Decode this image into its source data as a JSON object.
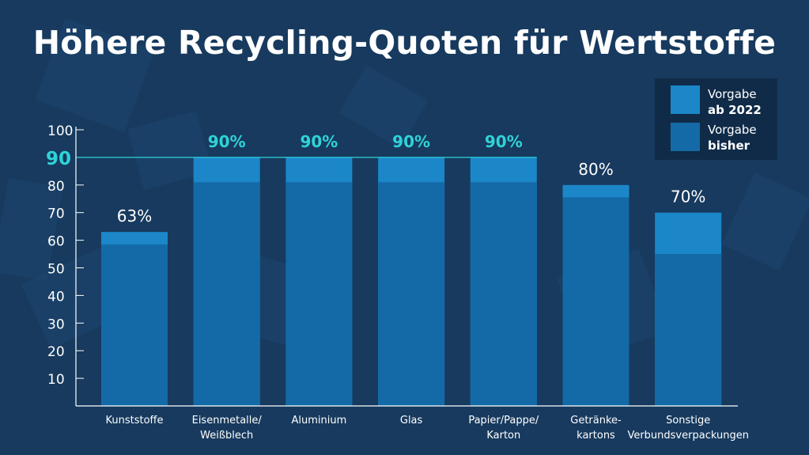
{
  "title": "Höhere Recycling-Quoten für Wertstoffe",
  "legend": {
    "new": {
      "line1": "Vorgabe",
      "line2": "ab 2022"
    },
    "old": {
      "line1": "Vorgabe",
      "line2": "bisher"
    }
  },
  "colors": {
    "background": "#173a5e",
    "bar_new": "#1b87c9",
    "bar_old": "#136aa6",
    "highlight": "#2fd3d8",
    "label": "#ffffff"
  },
  "chart_data": {
    "type": "bar",
    "stacked": "overlay",
    "categories": [
      [
        "Kunststoffe"
      ],
      [
        "Eisenmetalle/",
        "Weißblech"
      ],
      [
        "Aluminium"
      ],
      [
        "Glas"
      ],
      [
        "Papier/Pappe/",
        "Karton"
      ],
      [
        "Getränke-",
        "kartons"
      ],
      [
        "Sonstige",
        "Verbundsverpackungen"
      ]
    ],
    "series": [
      {
        "name": "Vorgabe ab 2022",
        "values": [
          63,
          90,
          90,
          90,
          90,
          80,
          70
        ]
      },
      {
        "name": "Vorgabe bisher",
        "values": [
          58.5,
          81,
          81,
          81,
          81,
          75.5,
          55
        ]
      }
    ],
    "data_labels": [
      "63%",
      "90%",
      "90%",
      "90%",
      "90%",
      "80%",
      "70%"
    ],
    "highlight_labels": [
      false,
      true,
      true,
      true,
      true,
      false,
      false
    ],
    "reference_line": {
      "value": 90,
      "label": "90"
    },
    "yticks": [
      10,
      20,
      30,
      40,
      50,
      60,
      70,
      80,
      100
    ],
    "ylim": [
      0,
      100
    ]
  }
}
